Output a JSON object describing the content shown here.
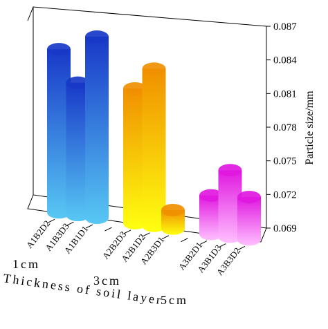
{
  "chart_data": {
    "type": "bar3d",
    "y_label": "Particle size/mm",
    "x_label": "Thickness of soil layer",
    "groups": [
      "1cm",
      "3cm",
      "5cm"
    ],
    "categories": [
      "A1B2D2",
      "A1B3D3",
      "A1B1D1",
      null,
      "A2B2D3",
      "A2B1D2",
      "A2B3D1",
      null,
      "A3B2D1",
      "A3B1D3",
      "A3B3D2"
    ],
    "values": [
      0.0845,
      0.0815,
      0.086,
      null,
      0.0815,
      0.0835,
      0.0707,
      null,
      0.0725,
      0.075,
      0.0728
    ],
    "colors": [
      [
        "#1838c8",
        "#58c8f4"
      ],
      [
        "#1838c8",
        "#58c8f4"
      ],
      [
        "#1838c8",
        "#58c8f4"
      ],
      null,
      [
        "#f09000",
        "#ffff10"
      ],
      [
        "#f09000",
        "#ffff10"
      ],
      [
        "#f09000",
        "#ffff10"
      ],
      null,
      [
        "#e018e0",
        "#ffc0ff"
      ],
      [
        "#e018e0",
        "#ffc0ff"
      ],
      [
        "#e018e0",
        "#ffc0ff"
      ]
    ],
    "ylim": [
      0.069,
      0.087
    ],
    "yticks": [
      0.069,
      0.072,
      0.075,
      0.078,
      0.081,
      0.084,
      0.087
    ]
  }
}
